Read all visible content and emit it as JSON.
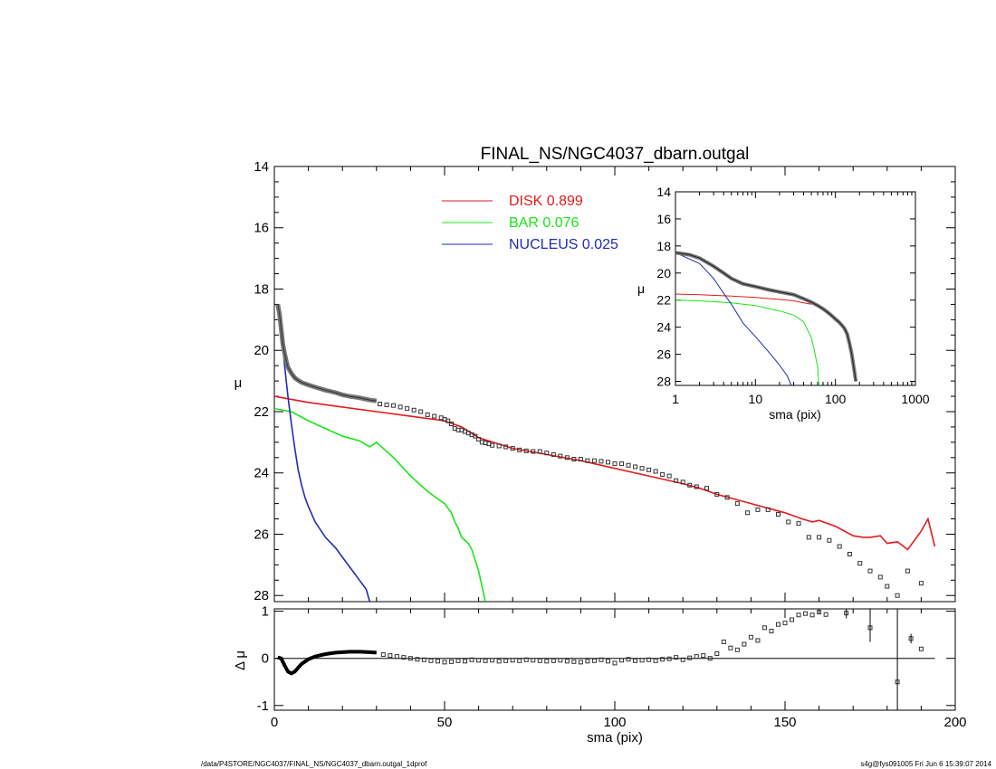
{
  "page": {
    "title": "FINAL_NS/NGC4037_dbarn.outgal",
    "footer_left": "/data/P4STORE/NGC4037/FINAL_NS/NGC4037_dbarn.outgal_1dprof",
    "footer_right": "s4g@fys091005  Fri Jun  6 15:39:07 2014"
  },
  "chart_data": [
    {
      "id": "main",
      "type": "line",
      "xlabel": "sma (pix)",
      "ylabel": "μ",
      "xlim": [
        0,
        200
      ],
      "ylim": [
        28.2,
        14
      ],
      "yticks": [
        14,
        16,
        18,
        20,
        22,
        24,
        26,
        28
      ],
      "legend": [
        {
          "label": "DISK  0.899",
          "color": "#e31a1c"
        },
        {
          "label": "BAR  0.076",
          "color": "#19e619"
        },
        {
          "label": "NUCLEUS  0.025",
          "color": "#1f2db4"
        }
      ],
      "series": [
        {
          "key": "disk",
          "color": "#e31a1c",
          "x": [
            0,
            10,
            20,
            30,
            40,
            50,
            55,
            60,
            70,
            80,
            90,
            100,
            110,
            120,
            125,
            130,
            135,
            140,
            145,
            150,
            155,
            158,
            160,
            165,
            170,
            173,
            175,
            178,
            180,
            183,
            186,
            188,
            190,
            192,
            194
          ],
          "y": [
            21.5,
            21.7,
            21.85,
            22.0,
            22.15,
            22.3,
            22.5,
            22.85,
            23.2,
            23.4,
            23.6,
            23.85,
            24.1,
            24.35,
            24.5,
            24.7,
            24.85,
            25.0,
            25.15,
            25.3,
            25.5,
            25.6,
            25.55,
            25.75,
            26.05,
            26.1,
            26.1,
            26.05,
            26.3,
            26.25,
            26.5,
            26.2,
            25.9,
            25.5,
            26.4
          ]
        },
        {
          "key": "bar",
          "color": "#19e619",
          "x": [
            0,
            5,
            10,
            15,
            20,
            25,
            28,
            30,
            35,
            40,
            45,
            48,
            50,
            52,
            53,
            54,
            55,
            57,
            58,
            60,
            62
          ],
          "y": [
            21.9,
            22.0,
            22.3,
            22.55,
            22.8,
            22.95,
            23.15,
            23.0,
            23.5,
            24.1,
            24.6,
            24.85,
            25.0,
            25.3,
            25.6,
            25.8,
            26.1,
            26.3,
            26.5,
            27.2,
            28.2
          ]
        },
        {
          "key": "nucleus",
          "color": "#1f2db4",
          "x": [
            1,
            2,
            3,
            4,
            5,
            6,
            7,
            8,
            9,
            10,
            12,
            15,
            18,
            20,
            22,
            25,
            27,
            28
          ],
          "y": [
            18.5,
            19.3,
            20.5,
            21.5,
            22.4,
            23.2,
            23.9,
            24.4,
            24.8,
            25.1,
            25.6,
            26.1,
            26.45,
            26.75,
            27.05,
            27.5,
            27.8,
            28.2
          ]
        }
      ],
      "observed": {
        "curve_x": [
          1,
          1.5,
          2,
          2.5,
          3,
          3.5,
          4,
          5,
          6,
          7,
          8,
          10,
          12,
          15,
          18,
          20,
          22,
          25,
          28,
          30
        ],
        "curve_y": [
          18.5,
          18.8,
          19.3,
          19.8,
          20.1,
          20.35,
          20.55,
          20.75,
          20.9,
          20.98,
          21.05,
          21.13,
          21.2,
          21.3,
          21.38,
          21.45,
          21.5,
          21.55,
          21.62,
          21.65
        ],
        "points_x": [
          31,
          33,
          35,
          37,
          39,
          41,
          43,
          45,
          47,
          49,
          50,
          51,
          52,
          53,
          54,
          55,
          56,
          57,
          58,
          59,
          60,
          61,
          62,
          63,
          64,
          66,
          68,
          70,
          72,
          74,
          76,
          78,
          80,
          82,
          84,
          86,
          88,
          90,
          92,
          94,
          96,
          98,
          100,
          102,
          104,
          106,
          108,
          110,
          112,
          114,
          116,
          118,
          120,
          122,
          124,
          127,
          130,
          133,
          136,
          139,
          142,
          145,
          148,
          151,
          154,
          157,
          160,
          163,
          166,
          169,
          172,
          175,
          178,
          180,
          183,
          186,
          190
        ],
        "points_y": [
          21.75,
          21.78,
          21.8,
          21.85,
          21.9,
          21.95,
          22.0,
          22.1,
          22.15,
          22.2,
          22.25,
          22.3,
          22.4,
          22.55,
          22.6,
          22.6,
          22.65,
          22.7,
          22.75,
          22.8,
          22.9,
          23.0,
          23.02,
          23.05,
          23.1,
          23.12,
          23.15,
          23.2,
          23.25,
          23.28,
          23.3,
          23.3,
          23.35,
          23.4,
          23.45,
          23.5,
          23.55,
          23.55,
          23.6,
          23.6,
          23.62,
          23.65,
          23.7,
          23.7,
          23.75,
          23.8,
          23.85,
          23.9,
          23.95,
          24.05,
          24.1,
          24.25,
          24.3,
          24.4,
          24.45,
          24.5,
          24.7,
          24.8,
          25.0,
          25.3,
          25.2,
          25.2,
          25.35,
          25.6,
          25.65,
          26.1,
          26.1,
          26.2,
          26.4,
          26.65,
          26.95,
          27.2,
          27.4,
          27.7,
          28.0,
          27.2,
          27.6
        ]
      }
    },
    {
      "id": "inset",
      "type": "line",
      "xlabel": "sma (pix)",
      "ylabel": "μ",
      "xscale": "log",
      "xlim": [
        1,
        1000
      ],
      "xticks": [
        1,
        10,
        100,
        1000
      ],
      "ylim": [
        28.3,
        14
      ],
      "yticks": [
        14,
        16,
        18,
        20,
        22,
        24,
        26,
        28
      ],
      "series": [
        {
          "key": "disk",
          "color": "#e31a1c",
          "x": [
            1,
            2,
            5,
            10,
            20,
            30,
            40,
            50
          ],
          "y": [
            21.55,
            21.6,
            21.7,
            21.8,
            21.95,
            22.05,
            22.2,
            22.3
          ]
        },
        {
          "key": "bar",
          "color": "#19e619",
          "x": [
            1,
            2,
            5,
            10,
            20,
            30,
            40,
            50,
            55,
            60,
            62
          ],
          "y": [
            22.0,
            22.05,
            22.2,
            22.4,
            22.8,
            23.1,
            23.6,
            24.8,
            25.8,
            27.0,
            28.3
          ]
        },
        {
          "key": "nucleus",
          "color": "#1f2db4",
          "x": [
            1,
            2,
            3,
            4,
            5,
            7,
            10,
            15,
            20,
            25,
            28
          ],
          "y": [
            18.5,
            19.3,
            20.4,
            21.5,
            22.3,
            23.7,
            24.7,
            25.9,
            26.8,
            27.6,
            28.3
          ]
        },
        {
          "key": "observed",
          "color": "#555555",
          "x": [
            1,
            1.5,
            2,
            3,
            4,
            5,
            7,
            10,
            15,
            20,
            30,
            40,
            50,
            60,
            70,
            80,
            90,
            100,
            110,
            120,
            130,
            140,
            150,
            160,
            170,
            180
          ],
          "y": [
            18.5,
            18.65,
            18.9,
            19.5,
            20.0,
            20.4,
            20.8,
            21.0,
            21.25,
            21.4,
            21.6,
            21.9,
            22.15,
            22.4,
            22.65,
            22.9,
            23.15,
            23.4,
            23.6,
            23.85,
            24.1,
            24.5,
            25.2,
            26.0,
            27.0,
            28.0
          ]
        }
      ]
    },
    {
      "id": "residual",
      "type": "scatter",
      "xlabel": "sma (pix)",
      "ylabel": "Δ μ",
      "xlim": [
        0,
        200
      ],
      "xticks": [
        0,
        50,
        100,
        150,
        200
      ],
      "ylim": [
        -1.1,
        1.05
      ],
      "yticks": [
        1,
        0,
        -1
      ],
      "curve_x": [
        1,
        2,
        3,
        4,
        5,
        6,
        7,
        8,
        10,
        12,
        15,
        18,
        20,
        22,
        25,
        28,
        30
      ],
      "curve_y": [
        0.02,
        0.0,
        -0.15,
        -0.28,
        -0.32,
        -0.28,
        -0.2,
        -0.12,
        -0.02,
        0.04,
        0.09,
        0.12,
        0.13,
        0.14,
        0.14,
        0.13,
        0.12
      ],
      "points_x": [
        32,
        34,
        36,
        38,
        40,
        42,
        44,
        46,
        48,
        50,
        52,
        54,
        56,
        58,
        60,
        62,
        64,
        66,
        68,
        70,
        72,
        74,
        76,
        78,
        80,
        82,
        84,
        86,
        88,
        90,
        92,
        94,
        96,
        98,
        100,
        102,
        104,
        106,
        108,
        110,
        112,
        114,
        116,
        118,
        120,
        122,
        124,
        126,
        128,
        130,
        132,
        134,
        136,
        138,
        140,
        142,
        144,
        146,
        148,
        150,
        152,
        154,
        156,
        158,
        160,
        162,
        168,
        175,
        183,
        187,
        190
      ],
      "points_y": [
        0.08,
        0.06,
        0.04,
        0.02,
        0.0,
        -0.02,
        -0.03,
        -0.05,
        -0.06,
        -0.08,
        -0.07,
        -0.05,
        -0.06,
        -0.03,
        -0.04,
        -0.05,
        -0.04,
        -0.06,
        -0.05,
        -0.04,
        -0.05,
        -0.03,
        -0.04,
        -0.05,
        -0.06,
        -0.05,
        -0.04,
        -0.06,
        -0.07,
        -0.08,
        -0.06,
        -0.05,
        -0.03,
        -0.06,
        -0.1,
        -0.04,
        -0.02,
        -0.05,
        -0.04,
        -0.03,
        -0.05,
        -0.02,
        -0.01,
        0.02,
        -0.03,
        0.01,
        0.04,
        0.06,
        0.0,
        0.1,
        0.35,
        0.22,
        0.18,
        0.3,
        0.45,
        0.38,
        0.65,
        0.58,
        0.72,
        0.75,
        0.82,
        0.92,
        0.95,
        0.92,
        0.98,
        0.93,
        0.96,
        0.65,
        -0.5,
        0.42,
        0.2
      ],
      "error_bars": [
        {
          "x": 168,
          "low": 0.85,
          "high": 1.05
        },
        {
          "x": 175,
          "low": 0.35,
          "high": 1.05
        },
        {
          "x": 183,
          "low": -1.1,
          "high": 1.05
        },
        {
          "x": 187,
          "low": 0.32,
          "high": 0.52
        }
      ]
    }
  ]
}
